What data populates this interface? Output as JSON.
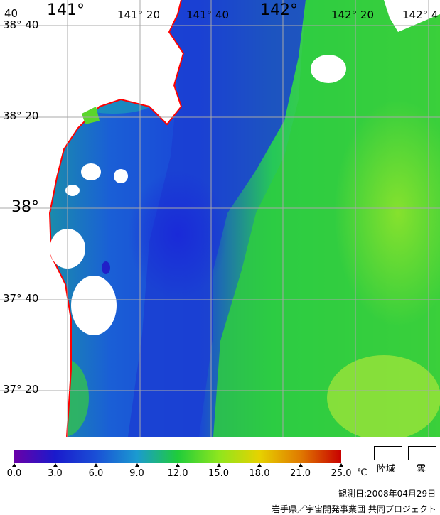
{
  "map": {
    "lon_labels": [
      "141°",
      "141° 20",
      "141° 40",
      "142°",
      "142° 20",
      "142° 4"
    ],
    "lat_labels": [
      "38° 40",
      "38° 20",
      "38°",
      "37° 40",
      "37° 20"
    ],
    "corner_label": "40",
    "colors": {
      "land": "#ffffff",
      "coast": "#ff0000",
      "grid": "#b0b0b0"
    }
  },
  "legend": {
    "ticks": [
      "0.0",
      "3.0",
      "6.0",
      "9.0",
      "12.0",
      "15.0",
      "18.0",
      "21.0",
      "25.0"
    ],
    "unit": "℃",
    "land_label": "陸域",
    "cloud_label": "雲",
    "gradient": [
      "#6a00a8",
      "#1a1acc",
      "#1a4fd6",
      "#1b9ad0",
      "#1fcc3a",
      "#8ee61e",
      "#e6d200",
      "#e07a00",
      "#c80000"
    ]
  },
  "observation_date": "観測日:2008年04月29日",
  "credit": "岩手県／宇宙開発事業団 共同プロジェクト"
}
